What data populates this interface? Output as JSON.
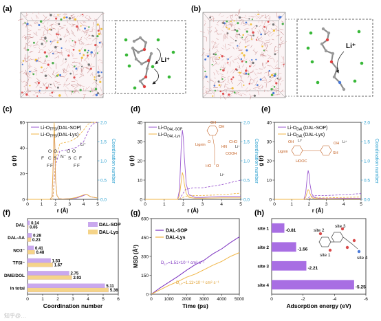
{
  "panel_labels": {
    "a": "(a)",
    "b": "(b)",
    "c": "(c)",
    "d": "(d)",
    "e": "(e)",
    "f": "(f)",
    "g": "(g)",
    "h": "(h)"
  },
  "li_plus": "Li⁺",
  "rdf_panels": {
    "ylabel_left": "g (r)",
    "ylabel_right": "Coordination number",
    "xlabel": "r (Å)",
    "x_ticks": [
      "0",
      "1",
      "2",
      "3",
      "4",
      "5"
    ],
    "y_left_ticks": [
      "0",
      "20",
      "40",
      "60"
    ],
    "y_left_ticks_e": [
      "0",
      "10",
      "20",
      "30",
      "40"
    ],
    "y_right_ticks": [
      "0.0",
      "0.5",
      "1.0",
      "1.5",
      "2.0"
    ]
  },
  "panel_c": {
    "legend": [
      "Li-O_TFSI(DAL-SOP)",
      "Li-O_TFSI(DAL-Lys)"
    ],
    "legend_main": "Li-O",
    "legend_sub": "TFSI",
    "legend_tail": [
      "(DAL-SOP)",
      "(DAL-Lys)"
    ]
  },
  "panel_d": {
    "legend_main": "Li-O",
    "legend_sub": [
      "DAL-SOP",
      "DAL-Lys"
    ],
    "labels": {
      "lignin": "Lignin",
      "oh": "OH",
      "nh": "HN",
      "cooh": "COOH",
      "ho": "HO",
      "o": "O"
    }
  },
  "panel_e": {
    "legend_main": "Li-O",
    "legend_sub": "DAL",
    "legend_tail": [
      "(DAL-SOP)",
      "(DAL-Lys)"
    ],
    "labels": {
      "lignin": "Lignin",
      "hooc": "HOOC",
      "oh": "OH",
      "sh": "SH"
    }
  },
  "chart_data": [
    {
      "panel": "c",
      "type": "line",
      "xlabel": "r (Å)",
      "ylabel": "g (r)",
      "y2label": "Coordination number",
      "xlim": [
        0,
        5
      ],
      "ylim": [
        0,
        60
      ],
      "y2lim": [
        0,
        2
      ],
      "series": [
        {
          "name": "Li-O_TFSI(DAL-SOP)",
          "color": "#9b59d0",
          "x": [
            0,
            1.6,
            1.75,
            1.85,
            1.9,
            1.95,
            2.0,
            2.1,
            2.25,
            2.5,
            3.0,
            3.5,
            4.0,
            4.2,
            4.5,
            5.0
          ],
          "y": [
            0,
            0,
            2,
            30,
            58,
            40,
            15,
            3,
            0.5,
            0.3,
            0.5,
            1,
            3,
            4,
            2,
            1
          ]
        },
        {
          "name": "Li-O_TFSI(DAL-Lys) ",
          "color": "#f0b545",
          "x": [
            0,
            1.6,
            1.75,
            1.85,
            1.9,
            1.95,
            2.0,
            2.1,
            2.25,
            2.5,
            3.0,
            3.5,
            4.0,
            4.2,
            4.5,
            5.0
          ],
          "y": [
            0,
            0,
            2,
            35,
            62,
            42,
            16,
            3,
            0.5,
            0.3,
            0.5,
            1.5,
            3.5,
            4,
            2,
            1
          ]
        },
        {
          "name": "CN DAL-SOP",
          "axis": "right",
          "color": "#9b59d0",
          "x": [
            0,
            1.8,
            2.0,
            2.3,
            3.0,
            3.5,
            4.0,
            4.3,
            4.6,
            5.0
          ],
          "y": [
            0,
            0,
            0.9,
            1.25,
            1.3,
            1.35,
            1.5,
            1.75,
            1.95,
            2.0
          ]
        },
        {
          "name": "CN DAL-Lys",
          "axis": "right",
          "color": "#f0b545",
          "x": [
            0,
            1.8,
            2.0,
            2.3,
            3.0,
            3.5,
            4.0,
            4.3,
            4.6,
            5.0
          ],
          "y": [
            0,
            0,
            1.0,
            1.45,
            1.5,
            1.6,
            1.8,
            1.95,
            2.0,
            2.0
          ]
        }
      ]
    },
    {
      "panel": "d",
      "type": "line",
      "xlabel": "r (Å)",
      "ylabel": "g (r)",
      "y2label": "Coordination number",
      "xlim": [
        0,
        5
      ],
      "ylim": [
        0,
        40
      ],
      "y2lim": [
        0,
        2
      ],
      "series": [
        {
          "name": "Li-O_DAL-SOP",
          "color": "#9b59d0",
          "x": [
            0,
            1.7,
            1.8,
            1.9,
            1.95,
            2.0,
            2.05,
            2.15,
            2.3,
            2.6,
            3.0,
            4.0,
            5.0
          ],
          "y": [
            0,
            0,
            5,
            30,
            36,
            32,
            22,
            8,
            2.5,
            1,
            1,
            1.5,
            1.5
          ]
        },
        {
          "name": "Li-O_DAL-Lys",
          "color": "#f0b545",
          "x": [
            0,
            1.7,
            1.8,
            1.9,
            1.95,
            2.0,
            2.05,
            2.15,
            2.3,
            2.6,
            3.0,
            4.0,
            5.0
          ],
          "y": [
            0,
            0,
            2,
            10,
            14,
            12,
            8,
            3,
            1,
            0.6,
            0.6,
            0.8,
            0.8
          ]
        },
        {
          "name": "CN DAL-SOP",
          "axis": "right",
          "color": "#9b59d0",
          "x": [
            0,
            1.8,
            2.1,
            2.5,
            3.0,
            4.0,
            5.0
          ],
          "y": [
            0,
            0,
            0.25,
            0.3,
            0.3,
            0.38,
            0.5
          ]
        },
        {
          "name": "CN DAL-Lys",
          "axis": "right",
          "color": "#f0b545",
          "x": [
            0,
            1.8,
            2.1,
            2.5,
            3.0,
            4.0,
            5.0
          ],
          "y": [
            0,
            0,
            0.08,
            0.1,
            0.1,
            0.12,
            0.16
          ]
        }
      ]
    },
    {
      "panel": "e",
      "type": "line",
      "xlabel": "r (Å)",
      "ylabel": "g (r)",
      "y2label": "Coordination number",
      "xlim": [
        0,
        5
      ],
      "ylim": [
        0,
        40
      ],
      "y2lim": [
        0,
        2
      ],
      "series": [
        {
          "name": "Li-O_DAL(DAL-SOP)",
          "color": "#9b59d0",
          "x": [
            0,
            1.7,
            1.8,
            1.9,
            1.95,
            2.0,
            2.05,
            2.15,
            2.3,
            2.6,
            3.0,
            4.0,
            5.0
          ],
          "y": [
            0,
            0,
            3,
            12,
            15,
            13,
            8,
            3,
            1,
            0.5,
            0.4,
            0.5,
            0.5
          ]
        },
        {
          "name": "Li-O_DAL(DAL-Lys)",
          "color": "#f0b545",
          "x": [
            0,
            1.7,
            1.8,
            1.9,
            1.95,
            2.0,
            2.05,
            2.15,
            2.3,
            2.6,
            3.0,
            4.0,
            5.0
          ],
          "y": [
            0,
            0,
            1,
            4,
            5,
            4.5,
            3,
            1,
            0.4,
            0.2,
            0.2,
            0.2,
            0.2
          ]
        },
        {
          "name": "CN DAL-SOP",
          "axis": "right",
          "color": "#9b59d0",
          "x": [
            0,
            1.8,
            2.1,
            2.5,
            3.0,
            4.0,
            5.0
          ],
          "y": [
            0,
            0,
            0.08,
            0.1,
            0.1,
            0.12,
            0.15
          ]
        },
        {
          "name": "CN DAL-Lys",
          "axis": "right",
          "color": "#f0b545",
          "x": [
            0,
            1.8,
            2.1,
            2.5,
            3.0,
            4.0,
            5.0
          ],
          "y": [
            0,
            0,
            0.03,
            0.04,
            0.04,
            0.05,
            0.06
          ]
        }
      ]
    },
    {
      "panel": "f",
      "type": "bar",
      "orientation": "horizontal",
      "xlabel": "Coordination number",
      "xlim": [
        0,
        6
      ],
      "x_ticks": [
        "0",
        "1",
        "2",
        "3",
        "4",
        "5",
        "6"
      ],
      "categories": [
        "DAL",
        "DAL-AA",
        "NO3⁻",
        "TFSI⁻",
        "DME/DOL",
        "In total"
      ],
      "series": [
        {
          "name": "DAL-SOP",
          "color": "#c9a8ee",
          "values": [
            0.14,
            0.28,
            0.41,
            1.53,
            2.75,
            5.11
          ],
          "labels": [
            "0.14",
            "0.28",
            "0.41",
            "1.53",
            "2.75",
            "5.11"
          ]
        },
        {
          "name": "DAL-Lys",
          "color": "#f5d489",
          "values": [
            0.05,
            0.23,
            0.48,
            1.67,
            2.93,
            5.36
          ],
          "labels": [
            "0.05",
            "0.23",
            "0.48",
            "1.67",
            "2.93",
            "5.36"
          ]
        }
      ],
      "legend_position": "top-right"
    },
    {
      "panel": "g",
      "type": "line",
      "xlabel": "Time (ps)",
      "ylabel": "MSD (Å²)",
      "xlim": [
        0,
        5000
      ],
      "ylim": [
        0,
        600
      ],
      "x_ticks": [
        "0",
        "1000",
        "2000",
        "3000",
        "4000",
        "5000"
      ],
      "y_ticks": [
        "0",
        "150",
        "300",
        "450",
        "600"
      ],
      "series": [
        {
          "name": "DAL-SOP",
          "color": "#7a2fbf",
          "x": [
            0,
            500,
            1000,
            1500,
            2000,
            2500,
            3000,
            3500,
            4000,
            4500,
            5000
          ],
          "y": [
            0,
            50,
            95,
            140,
            190,
            235,
            270,
            320,
            360,
            410,
            455
          ]
        },
        {
          "name": "DAL-Lys",
          "color": "#f0b545",
          "x": [
            0,
            500,
            1000,
            1500,
            2000,
            2500,
            3000,
            3500,
            4000,
            4500,
            5000
          ],
          "y": [
            0,
            35,
            70,
            100,
            135,
            160,
            195,
            230,
            260,
            300,
            330
          ]
        }
      ],
      "annotations": [
        {
          "text_main": "D",
          "text_sub": "Li⁺",
          "text_rest": "=1.51×10⁻⁸ cm²·s⁻¹",
          "color": "#7a2fbf"
        },
        {
          "text_main": "D",
          "text_sub": "Li⁺",
          "text_rest": "=1.11×10⁻⁸ cm²·s⁻¹",
          "color": "#e0a030"
        }
      ]
    },
    {
      "panel": "h",
      "type": "bar",
      "orientation": "horizontal",
      "xlabel": "Adsorption energy (eV)",
      "xlim": [
        0,
        -6
      ],
      "x_ticks": [
        "0",
        "-2",
        "-4",
        "-6"
      ],
      "categories": [
        "site 1",
        "site 2",
        "site 3",
        "site 4"
      ],
      "values": [
        -0.81,
        -1.56,
        -2.21,
        -5.25
      ],
      "labels": [
        "-0.81",
        "-1.56",
        "-2.21",
        "-5.25"
      ],
      "color": "#a86ee3",
      "site_labels": [
        "site 1",
        "site 2",
        "site 3",
        "site 4"
      ]
    }
  ],
  "watermark": "知乎@…"
}
